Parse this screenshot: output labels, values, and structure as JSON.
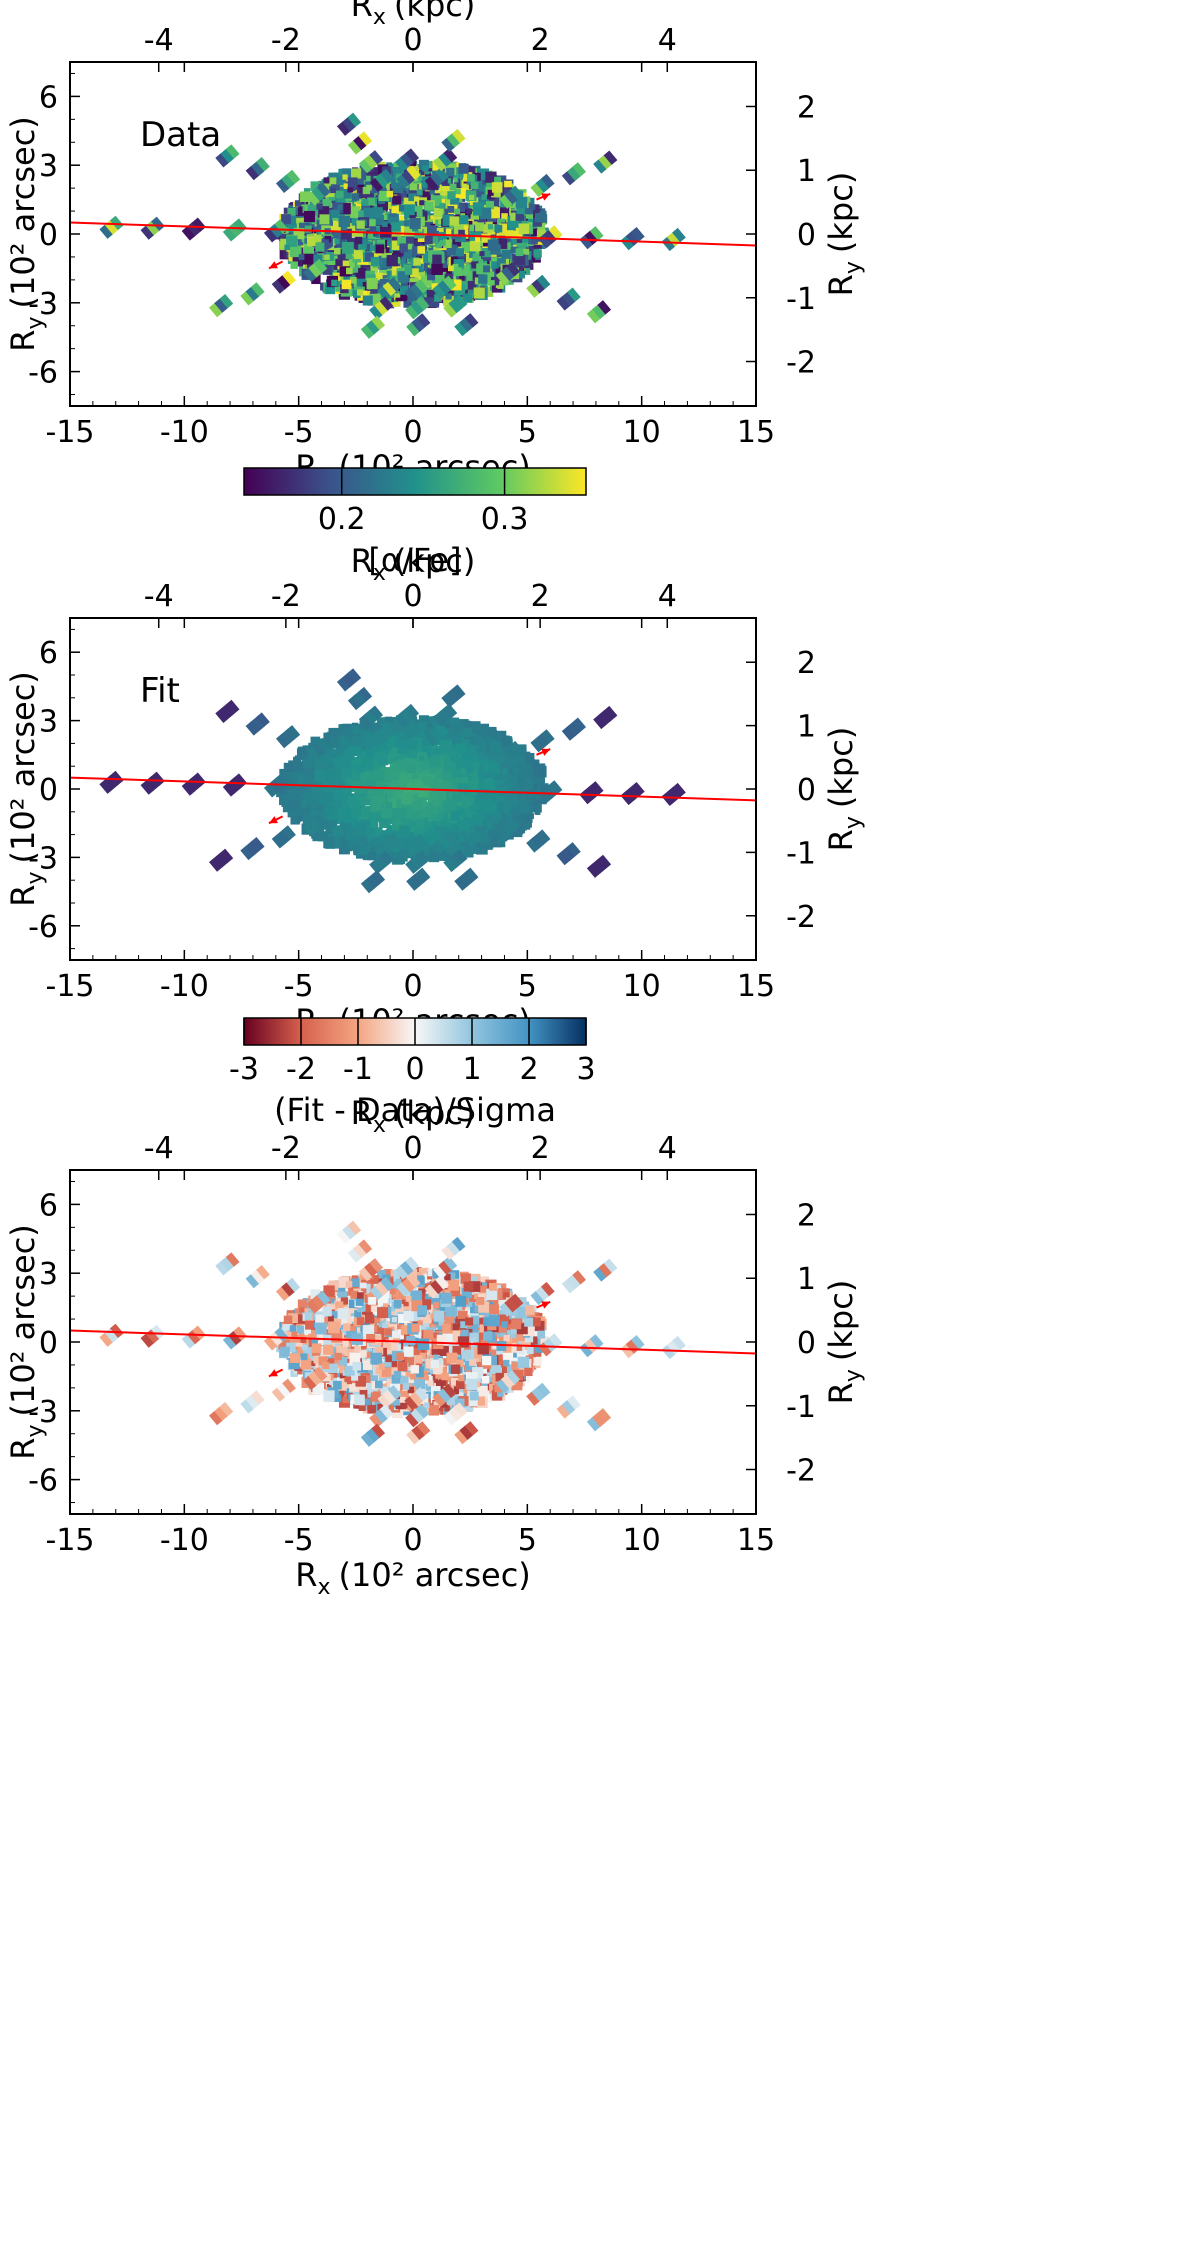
{
  "chart_data": [
    {
      "type": "heatmap",
      "panel_label": "Data",
      "xlabel": "R",
      "xlabel_sub": "x",
      "xlabel_unit": "(10² arcsec)",
      "ylabel": "R",
      "ylabel_sub": "y",
      "ylabel_unit": "(10² arcsec)",
      "top_xlabel": "R",
      "top_xlabel_sub": "x",
      "top_xlabel_unit": "(kpc)",
      "right_ylabel": "R",
      "right_ylabel_sub": "y",
      "right_ylabel_unit": "(kpc)",
      "xlim": [
        -15,
        15
      ],
      "ylim": [
        -7.5,
        7.5
      ],
      "xticks": [
        "-15",
        "-10",
        "-5",
        "0",
        "5",
        "10",
        "15"
      ],
      "yticks": [
        "6",
        "3",
        "0",
        "-3",
        "-6"
      ],
      "top_ticks": [
        "-4",
        "-2",
        "0",
        "2",
        "4"
      ],
      "right_ticks": [
        "2",
        "1",
        "0",
        "-1",
        "-2"
      ],
      "colorbar": {
        "label": "[α/Fe]",
        "range": [
          0.14,
          0.35
        ],
        "ticks": [
          "0.2",
          "0.3"
        ],
        "colormap": "viridis"
      }
    },
    {
      "type": "heatmap",
      "panel_label": "Fit",
      "xlabel": "R",
      "xlabel_sub": "x",
      "xlabel_unit": "(10² arcsec)",
      "ylabel": "R",
      "ylabel_sub": "y",
      "ylabel_unit": "(10² arcsec)",
      "top_xlabel": "R",
      "top_xlabel_sub": "x",
      "top_xlabel_unit": "(kpc)",
      "right_ylabel": "R",
      "right_ylabel_sub": "y",
      "right_ylabel_unit": "(kpc)",
      "xlim": [
        -15,
        15
      ],
      "ylim": [
        -7.5,
        7.5
      ],
      "xticks": [
        "-15",
        "-10",
        "-5",
        "0",
        "5",
        "10",
        "15"
      ],
      "yticks": [
        "6",
        "3",
        "0",
        "-3",
        "-6"
      ],
      "top_ticks": [
        "-4",
        "-2",
        "0",
        "2",
        "4"
      ],
      "right_ticks": [
        "2",
        "1",
        "0",
        "-1",
        "-2"
      ],
      "colorbar": {
        "label": "(Fit - Data)/Sigma",
        "range": [
          -3,
          3
        ],
        "ticks": [
          "-3",
          "-2",
          "-1",
          "0",
          "1",
          "2",
          "3"
        ],
        "colormap": "RdBu"
      }
    },
    {
      "type": "heatmap",
      "panel_label": "",
      "xlabel": "R",
      "xlabel_sub": "x",
      "xlabel_unit": "(10² arcsec)",
      "ylabel": "R",
      "ylabel_sub": "y",
      "ylabel_unit": "(10² arcsec)",
      "top_xlabel": "R",
      "top_xlabel_sub": "x",
      "top_xlabel_unit": "(kpc)",
      "right_ylabel": "R",
      "right_ylabel_sub": "y",
      "right_ylabel_unit": "(kpc)",
      "xlim": [
        -15,
        15
      ],
      "ylim": [
        -7.5,
        7.5
      ],
      "xticks": [
        "-15",
        "-10",
        "-5",
        "0",
        "5",
        "10",
        "15"
      ],
      "yticks": [
        "6",
        "3",
        "0",
        "-3",
        "-6"
      ],
      "top_ticks": [
        "-4",
        "-2",
        "0",
        "2",
        "4"
      ],
      "right_ticks": [
        "2",
        "1",
        "0",
        "-1",
        "-2"
      ]
    }
  ],
  "major_axis_line": {
    "x": [
      -15,
      15
    ],
    "y": [
      0.5,
      -0.5
    ],
    "color": "#ff0000"
  },
  "arrows": [
    {
      "from": [
        5.4,
        1.5
      ],
      "to": [
        6.0,
        1.75
      ]
    },
    {
      "from": [
        -5.7,
        -1.2
      ],
      "to": [
        -6.3,
        -1.5
      ]
    }
  ],
  "colors": {
    "viridis": [
      "#440154",
      "#3b528b",
      "#21918c",
      "#5ec962",
      "#fde725"
    ],
    "rdbu": [
      "#67001f",
      "#d6604d",
      "#f4a582",
      "#f7f7f7",
      "#92c5de",
      "#4393c3",
      "#053061"
    ],
    "line": "#ff0000"
  }
}
